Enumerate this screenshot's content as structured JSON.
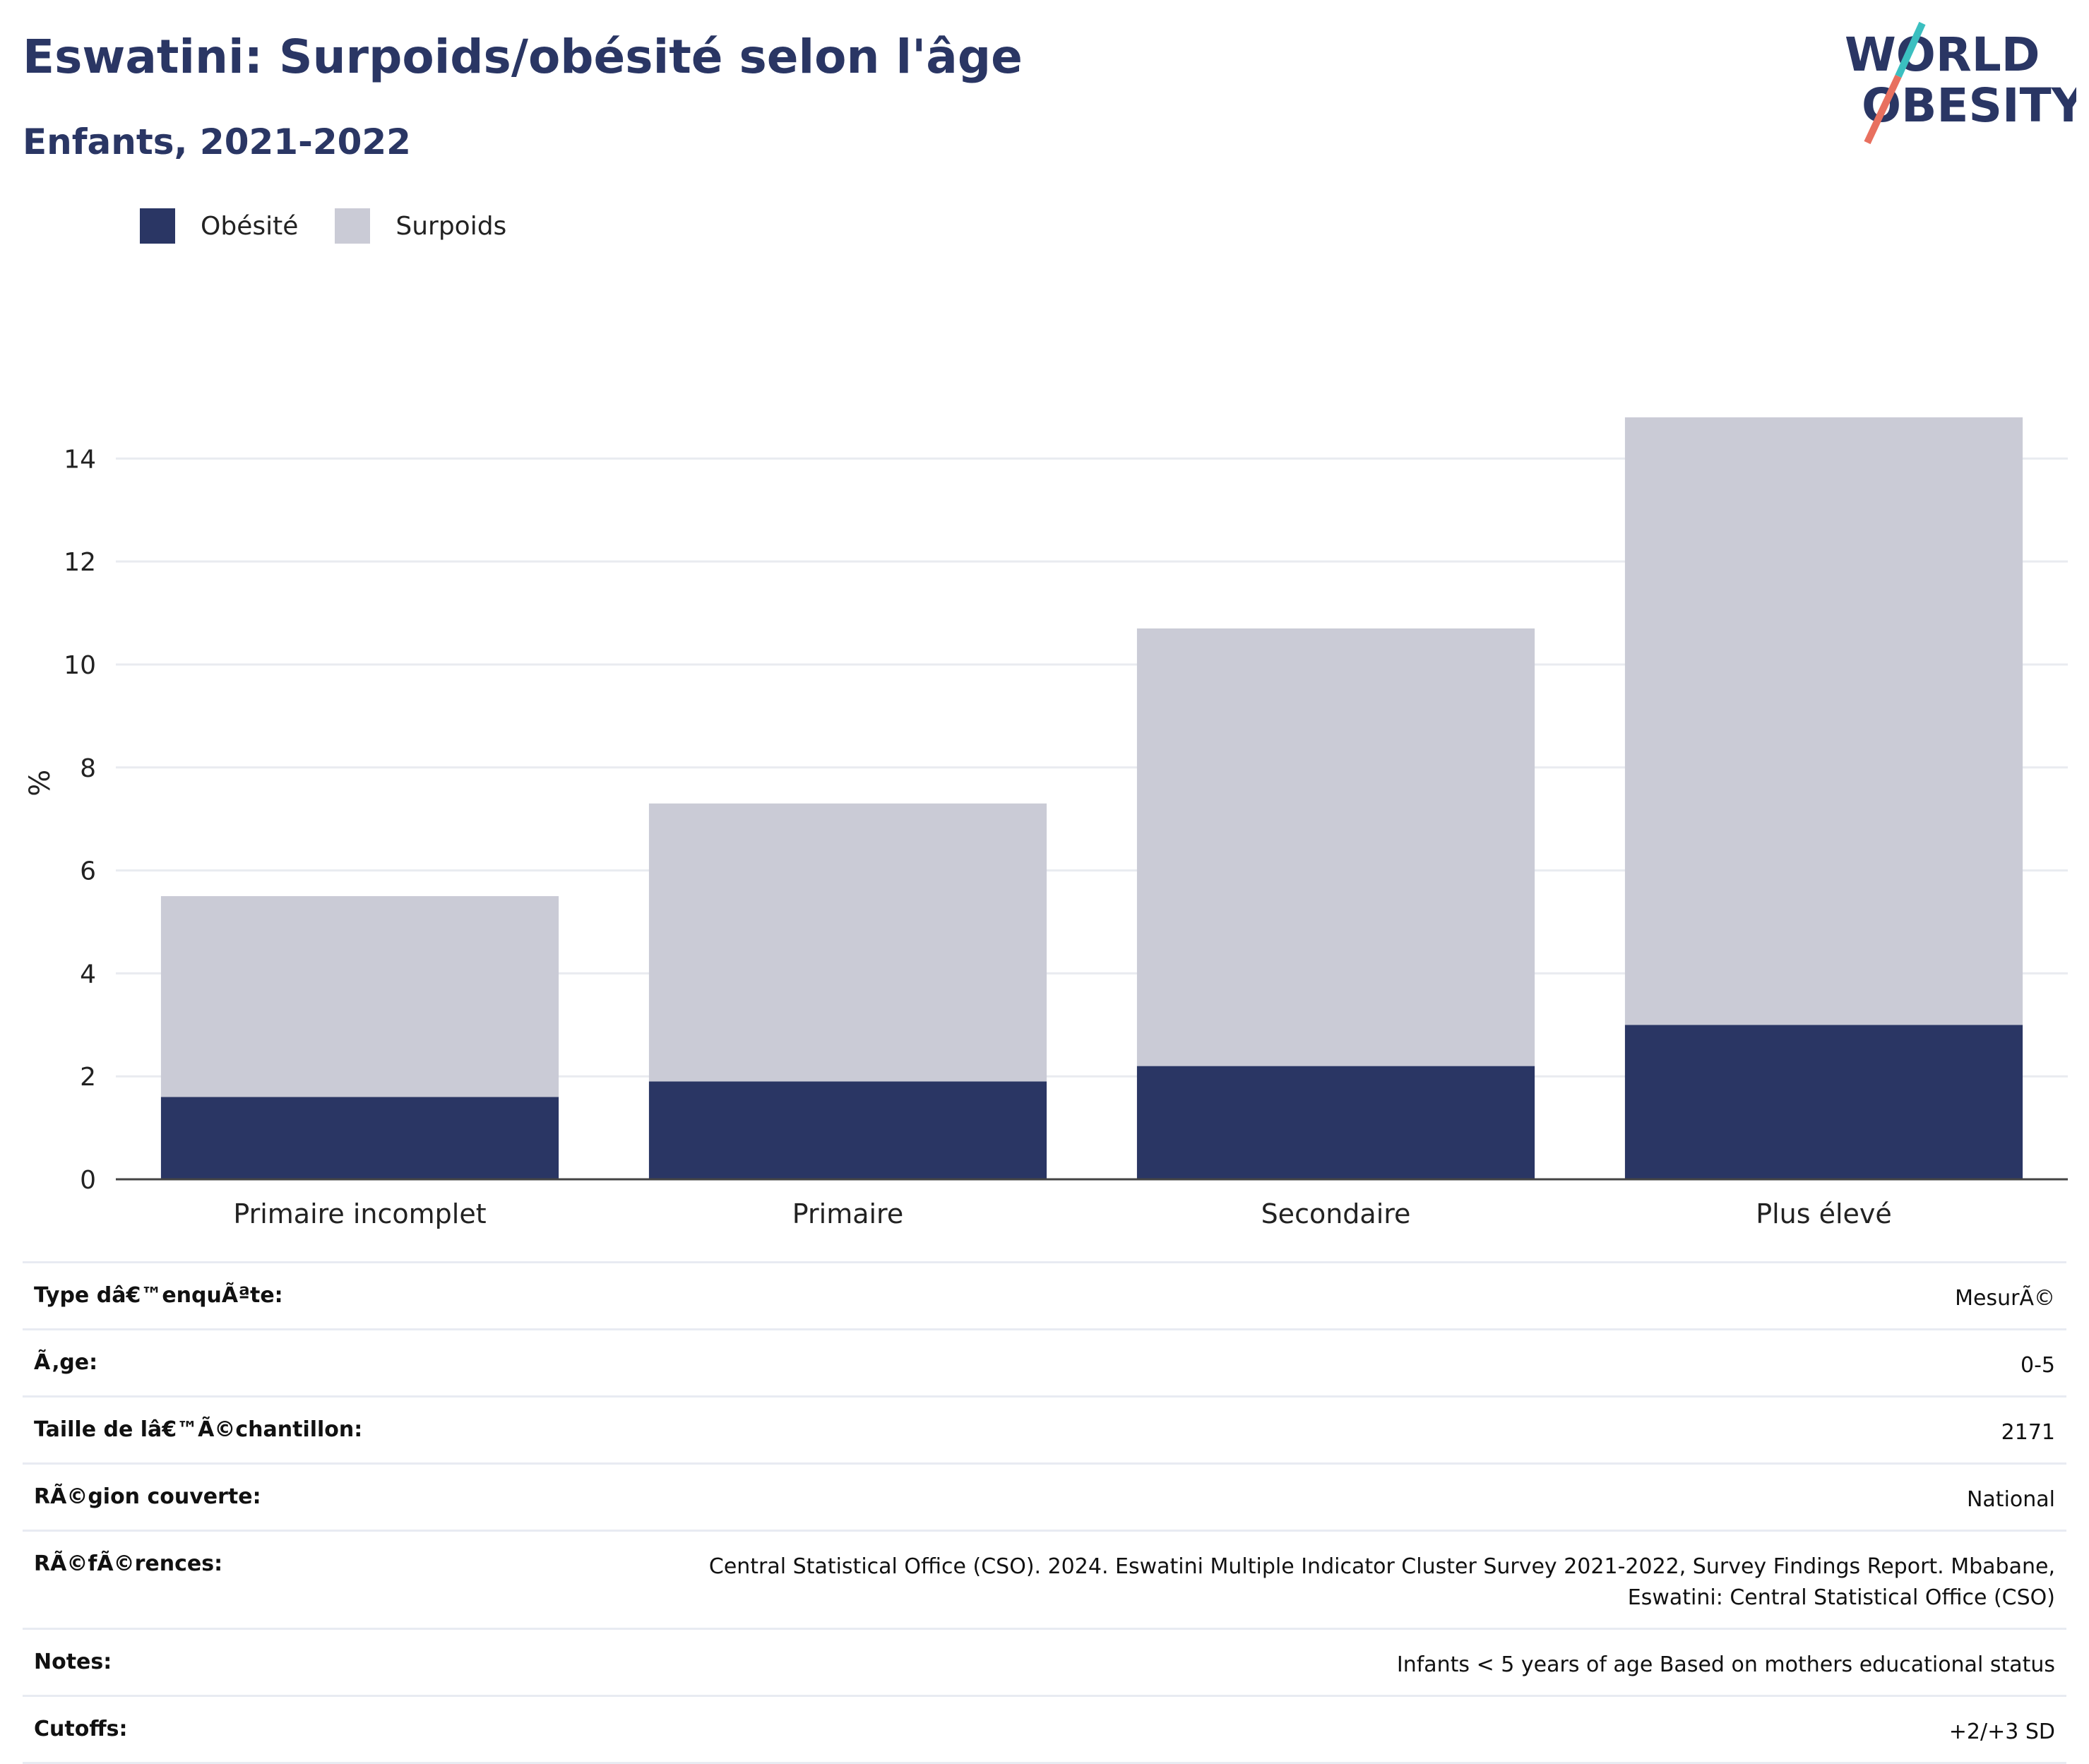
{
  "header": {
    "title": "Eswatini: Surpoids/obésité selon l'âge",
    "subtitle": "Enfants, 2021-2022"
  },
  "logo": {
    "line1": "WORLD",
    "line2": "OBESITY",
    "colors": {
      "text": "#2a3664",
      "slash_top": "#3bbfc0",
      "slash_bottom": "#e8705f"
    }
  },
  "legend": [
    {
      "label": "Obésité",
      "color": "#2a3664"
    },
    {
      "label": "Surpoids",
      "color": "#cacbd6"
    }
  ],
  "chart_data": {
    "type": "bar",
    "stacked": true,
    "categories": [
      "Primaire incomplet",
      "Primaire",
      "Secondaire",
      "Plus élevé"
    ],
    "series": [
      {
        "name": "Obésité",
        "values": [
          1.6,
          1.9,
          2.2,
          3.0
        ],
        "color": "#2a3664"
      },
      {
        "name": "Surpoids",
        "values": [
          3.9,
          5.4,
          8.5,
          11.8
        ],
        "color": "#cacbd6"
      }
    ],
    "ylabel": "%",
    "xlabel": "",
    "ylim": [
      0,
      15.5
    ],
    "yticks": [
      0,
      2,
      4,
      6,
      8,
      10,
      12,
      14
    ],
    "grid": true,
    "legend_position": "top-left"
  },
  "info": [
    {
      "label": "Type dâ€™enquÃªte:",
      "value": "MesurÃ©"
    },
    {
      "label": "Ã‚ge:",
      "value": "0-5"
    },
    {
      "label": "Taille de lâ€™Ã©chantillon:",
      "value": "2171"
    },
    {
      "label": "RÃ©gion couverte:",
      "value": "National"
    },
    {
      "label": "RÃ©fÃ©rences:",
      "value": "Central Statistical Office (CSO). 2024. Eswatini Multiple Indicator Cluster Survey 2021-2022, Survey Findings Report. Mbabane, Eswatini: Central Statistical Office (CSO)"
    },
    {
      "label": "Notes:",
      "value": "Infants < 5 years of age Based on mothers educational status"
    },
    {
      "label": "Cutoffs:",
      "value": "+2/+3 SD"
    }
  ]
}
